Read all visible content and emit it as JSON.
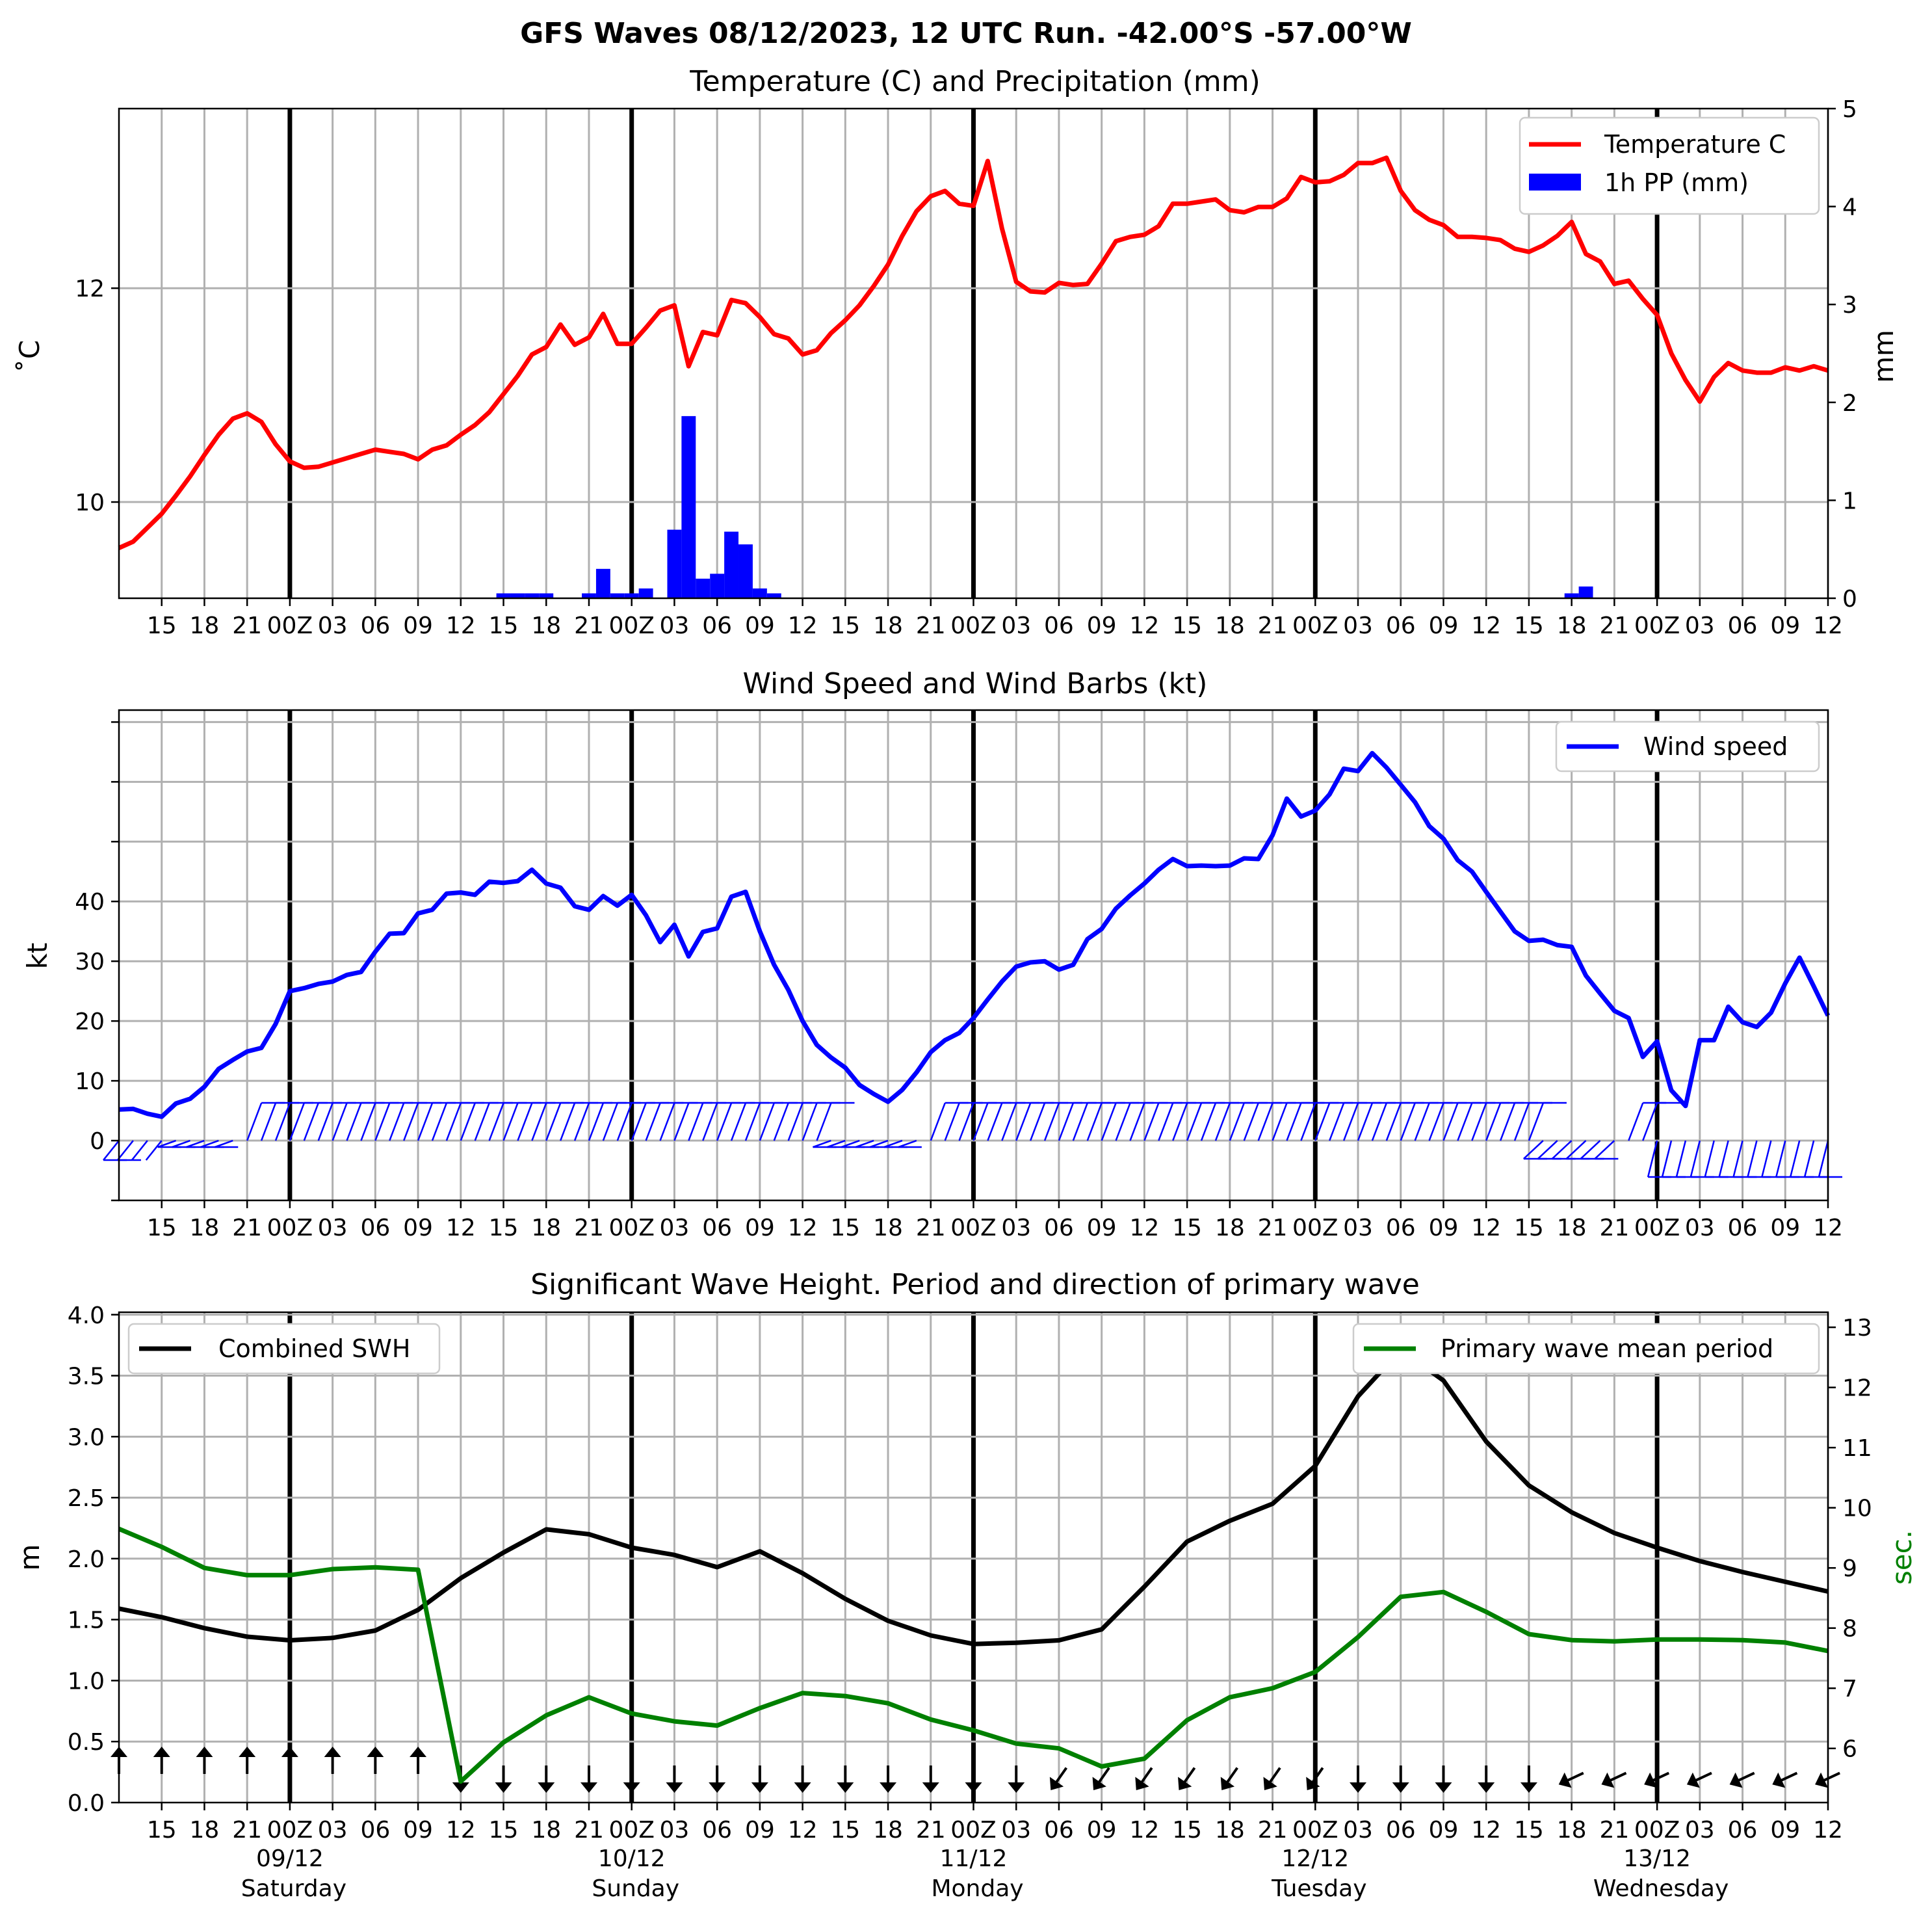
{
  "figure_title": "GFS Waves 08/12/2023, 12 UTC Run. -42.00°S -57.00°W",
  "colors": {
    "temperature": "#ff0000",
    "precip": "#0000ff",
    "wind": "#0000ff",
    "swh": "#000000",
    "period": "#008000"
  },
  "hour_ticks": [
    "15",
    "18",
    "21",
    "00Z",
    "03",
    "06",
    "09",
    "12",
    "15",
    "18",
    "21",
    "00Z",
    "03",
    "06",
    "09",
    "12",
    "15",
    "18",
    "21",
    "00Z",
    "03",
    "06",
    "09",
    "12",
    "15",
    "18",
    "21",
    "00Z",
    "03",
    "06",
    "09",
    "12",
    "15",
    "18",
    "21",
    "00Z",
    "03",
    "06",
    "09",
    "12"
  ],
  "day_labels": [
    {
      "date": "09/12",
      "weekday": "Saturday"
    },
    {
      "date": "10/12",
      "weekday": "Sunday"
    },
    {
      "date": "11/12",
      "weekday": "Monday"
    },
    {
      "date": "12/12",
      "weekday": "Tuesday"
    },
    {
      "date": "13/12",
      "weekday": "Wednesday"
    }
  ],
  "chart_data": [
    {
      "type": "line",
      "title": "Temperature (C) and Precipitation (mm)",
      "x_start": "2023-12-08 12:00 UTC",
      "x_end": "2023-12-13 12:00 UTC",
      "ylabel": "˚C",
      "y2label": "mm",
      "ylim": [
        9.1,
        13.68
      ],
      "y2lim": [
        0,
        5
      ],
      "yticks": [
        10,
        12
      ],
      "y2ticks": [
        0,
        1,
        2,
        3,
        4,
        5
      ],
      "grid": true,
      "legend_position": "top-right",
      "legend": [
        "Temperature C",
        "1h PP (mm)"
      ],
      "series": [
        {
          "name": "Temperature C",
          "x_hours": [
            0,
            1,
            2,
            3,
            4,
            5,
            6,
            7,
            8,
            9,
            10,
            11,
            12,
            13,
            14,
            15,
            16,
            17,
            18,
            19,
            20,
            21,
            22,
            23,
            24,
            25,
            26,
            27,
            28,
            29,
            30,
            31,
            32,
            33,
            34,
            35,
            36,
            37,
            38,
            39,
            40,
            41,
            42,
            43,
            44,
            45,
            46,
            47,
            48,
            49,
            50,
            51,
            52,
            53,
            54,
            55,
            56,
            57,
            58,
            59,
            60,
            61,
            62,
            63,
            64,
            65,
            66,
            67,
            68,
            69,
            70,
            71,
            72,
            73,
            74,
            75,
            76,
            77,
            78,
            79,
            80,
            81,
            82,
            83,
            84,
            85,
            86,
            87,
            88,
            89,
            90,
            91,
            92,
            93,
            94,
            95,
            96,
            97,
            98,
            99,
            100,
            101,
            102,
            103,
            104,
            105,
            106,
            107,
            108,
            109,
            110,
            111,
            112,
            113,
            114,
            115,
            116,
            117,
            118,
            119,
            120
          ],
          "values": [
            9.57,
            9.63,
            9.76,
            9.89,
            10.06,
            10.24,
            10.44,
            10.63,
            10.78,
            10.83,
            10.75,
            10.54,
            10.38,
            10.32,
            10.33,
            10.37,
            10.41,
            10.45,
            10.49,
            10.47,
            10.45,
            10.4,
            10.49,
            10.53,
            10.63,
            10.72,
            10.84,
            11.01,
            11.18,
            11.38,
            11.45,
            11.66,
            11.47,
            11.54,
            11.76,
            11.48,
            11.48,
            11.63,
            11.79,
            11.84,
            11.27,
            11.59,
            11.56,
            11.89,
            11.86,
            11.73,
            11.57,
            11.53,
            11.38,
            11.42,
            11.58,
            11.7,
            11.84,
            12.02,
            12.22,
            12.49,
            12.72,
            12.86,
            12.91,
            12.79,
            12.77,
            13.19,
            12.56,
            12.06,
            11.97,
            11.96,
            12.05,
            12.03,
            12.04,
            12.23,
            12.44,
            12.48,
            12.5,
            12.58,
            12.79,
            12.79,
            12.81,
            12.83,
            12.73,
            12.71,
            12.76,
            12.76,
            12.84,
            13.04,
            12.99,
            13.0,
            13.06,
            13.17,
            13.17,
            13.22,
            12.91,
            12.73,
            12.64,
            12.59,
            12.48,
            12.48,
            12.47,
            12.45,
            12.37,
            12.34,
            12.4,
            12.49,
            12.62,
            12.32,
            12.25,
            12.04,
            12.07,
            11.9,
            11.75,
            11.39,
            11.14,
            10.94,
            11.17,
            11.3,
            11.23,
            11.21,
            11.21,
            11.26,
            11.23,
            11.27,
            11.23
          ]
        },
        {
          "name": "1h PP (mm)",
          "type": "bar",
          "x_hours": [
            27,
            28,
            29,
            30,
            31,
            33,
            34,
            35,
            36,
            37,
            38,
            39,
            40,
            41,
            42,
            43,
            44,
            45,
            46,
            47,
            48,
            102,
            103
          ],
          "values": [
            0.05,
            0.05,
            0.05,
            0.05,
            0.0,
            0.05,
            0.3,
            0.05,
            0.05,
            0.1,
            0.0,
            0.7,
            1.86,
            0.2,
            0.25,
            0.68,
            0.55,
            0.1,
            0.05,
            0.0,
            0.0,
            0.05,
            0.12
          ]
        }
      ]
    },
    {
      "type": "line",
      "title": "Wind Speed and Wind Barbs (kt)",
      "x_start": "2023-12-08 12:00 UTC",
      "x_end": "2023-12-13 12:00 UTC",
      "ylabel": "kt",
      "ylim": [
        -10,
        72
      ],
      "yticks": [
        0,
        10,
        20,
        30,
        40
      ],
      "grid": true,
      "legend_position": "top-right",
      "legend": [
        "Wind speed"
      ],
      "series": [
        {
          "name": "Wind speed",
          "x_hours": [
            0,
            1,
            2,
            3,
            4,
            5,
            6,
            7,
            8,
            9,
            10,
            11,
            12,
            13,
            14,
            15,
            16,
            17,
            18,
            19,
            20,
            21,
            22,
            23,
            24,
            25,
            26,
            27,
            28,
            29,
            30,
            31,
            32,
            33,
            34,
            35,
            36,
            37,
            38,
            39,
            40,
            41,
            42,
            43,
            44,
            45,
            46,
            47,
            48,
            49,
            50,
            51,
            52,
            53,
            54,
            55,
            56,
            57,
            58,
            59,
            60,
            61,
            62,
            63,
            64,
            65,
            66,
            67,
            68,
            69,
            70,
            71,
            72,
            73,
            74,
            75,
            76,
            77,
            78,
            79,
            80,
            81,
            82,
            83,
            84,
            85,
            86,
            87,
            88,
            89,
            90,
            91,
            92,
            93,
            94,
            95,
            96,
            97,
            98,
            99,
            100,
            101,
            102,
            103,
            104,
            105,
            106,
            107,
            108,
            109,
            110,
            111,
            112,
            113,
            114,
            115,
            116,
            117,
            118,
            119,
            120
          ],
          "values": [
            5.2,
            5.3,
            4.5,
            4.0,
            6.2,
            7.0,
            9.0,
            12.0,
            13.5,
            14.9,
            15.5,
            19.5,
            25.0,
            25.5,
            26.2,
            26.6,
            27.7,
            28.2,
            31.6,
            34.6,
            34.7,
            38.0,
            38.6,
            41.3,
            41.5,
            41.1,
            43.3,
            43.1,
            43.4,
            45.3,
            43.0,
            42.3,
            39.2,
            38.6,
            40.9,
            39.3,
            41.1,
            37.7,
            33.2,
            36.1,
            30.8,
            34.9,
            35.5,
            40.8,
            41.6,
            35.0,
            29.4,
            25.2,
            20.0,
            16.0,
            13.9,
            12.2,
            9.3,
            7.8,
            6.5,
            8.5,
            11.4,
            14.8,
            16.8,
            18.0,
            20.5,
            23.6,
            26.6,
            29.1,
            29.8,
            30.0,
            28.6,
            29.4,
            33.7,
            35.4,
            38.8,
            41.0,
            43.0,
            45.3,
            47.1,
            45.9,
            46.0,
            45.9,
            46.0,
            47.2,
            47.1,
            51.1,
            57.2,
            54.2,
            55.2,
            57.9,
            62.2,
            61.8,
            64.8,
            62.4,
            59.5,
            56.6,
            52.6,
            50.5,
            46.9,
            45.0,
            41.6,
            38.3,
            35.0,
            33.4,
            33.6,
            32.7,
            32.4,
            27.6,
            24.6,
            21.7,
            20.5,
            14.0,
            16.6,
            8.4,
            5.8,
            16.8,
            16.8,
            22.4,
            19.8,
            19.0,
            21.4,
            26.3,
            30.6,
            25.8,
            20.9
          ]
        }
      ]
    },
    {
      "type": "line",
      "title": "Significant Wave Height. Period and direction of primary wave",
      "x_start": "2023-12-08 12:00 UTC",
      "x_end": "2023-12-13 12:00 UTC",
      "ylabel": "m",
      "y2label": "sec.",
      "ylim": [
        0,
        4.02
      ],
      "y2lim": [
        5.1,
        13.25
      ],
      "yticks": [
        0.0,
        0.5,
        1.0,
        1.5,
        2.0,
        2.5,
        3.0,
        3.5,
        4.0
      ],
      "y2ticks": [
        6,
        7,
        8,
        9,
        10,
        11,
        12,
        13
      ],
      "grid": true,
      "legend": [
        "Combined SWH",
        "Primary wave mean period"
      ],
      "legend_positions": [
        "top-left",
        "top-right"
      ],
      "series": [
        {
          "name": "Combined SWH",
          "x_hours": [
            0,
            3,
            6,
            9,
            12,
            15,
            18,
            21,
            24,
            27,
            30,
            33,
            36,
            39,
            42,
            45,
            48,
            51,
            54,
            57,
            60,
            63,
            66,
            69,
            72,
            75,
            78,
            81,
            84,
            87,
            90,
            93,
            96,
            99,
            102,
            105,
            108,
            111,
            114,
            117,
            120
          ],
          "values": [
            1.59,
            1.52,
            1.43,
            1.36,
            1.33,
            1.35,
            1.41,
            1.58,
            1.84,
            2.05,
            2.24,
            2.2,
            2.09,
            2.03,
            1.93,
            2.06,
            1.88,
            1.67,
            1.49,
            1.37,
            1.3,
            1.31,
            1.33,
            1.42,
            1.77,
            2.14,
            2.31,
            2.45,
            2.76,
            3.33,
            3.71,
            3.46,
            2.96,
            2.6,
            2.38,
            2.21,
            2.09,
            1.98,
            1.89,
            1.81,
            1.73
          ]
        },
        {
          "name": "Primary wave mean period",
          "x_hours": [
            0,
            3,
            6,
            9,
            12,
            15,
            18,
            21,
            24,
            27,
            30,
            33,
            36,
            39,
            42,
            45,
            48,
            51,
            54,
            57,
            60,
            63,
            66,
            69,
            72,
            75,
            78,
            81,
            84,
            87,
            90,
            93,
            96,
            99,
            102,
            105,
            108,
            111,
            114,
            117,
            120
          ],
          "values": [
            9.65,
            9.35,
            9.0,
            8.88,
            8.88,
            8.98,
            9.01,
            8.97,
            5.45,
            6.1,
            6.55,
            6.85,
            6.58,
            6.45,
            6.38,
            6.67,
            6.92,
            6.87,
            6.75,
            6.48,
            6.3,
            6.08,
            6.0,
            5.7,
            5.83,
            6.47,
            6.85,
            7.0,
            7.27,
            7.85,
            8.52,
            8.6,
            8.27,
            7.9,
            7.8,
            7.78,
            7.81,
            7.81,
            7.8,
            7.76,
            7.62
          ]
        }
      ]
    }
  ]
}
